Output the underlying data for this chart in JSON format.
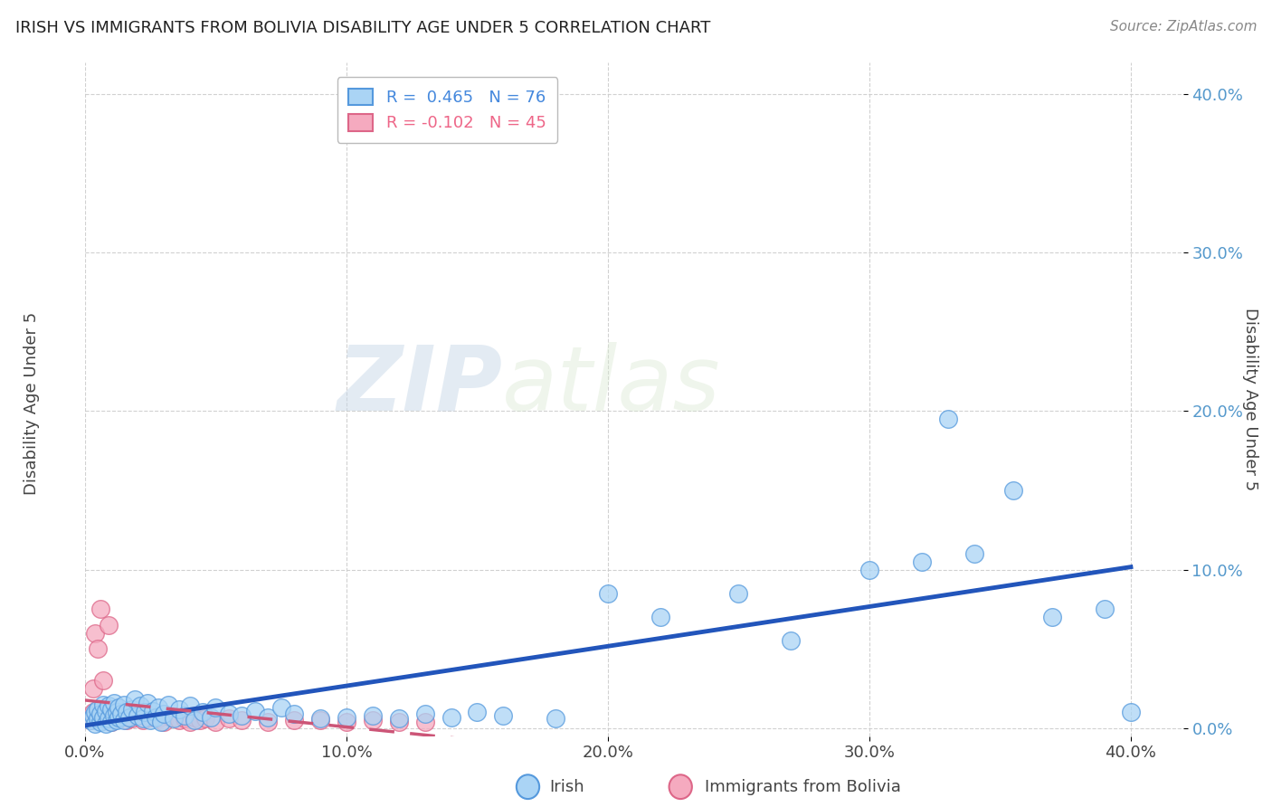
{
  "title": "IRISH VS IMMIGRANTS FROM BOLIVIA DISABILITY AGE UNDER 5 CORRELATION CHART",
  "source": "Source: ZipAtlas.com",
  "ylabel": "Disability Age Under 5",
  "watermark_zip": "ZIP",
  "watermark_atlas": "atlas",
  "xlim": [
    0.0,
    0.42
  ],
  "ylim": [
    -0.005,
    0.42
  ],
  "xticks": [
    0.0,
    0.1,
    0.2,
    0.3,
    0.4
  ],
  "yticks": [
    0.0,
    0.1,
    0.2,
    0.3,
    0.4
  ],
  "xticklabels": [
    "0.0%",
    "10.0%",
    "20.0%",
    "30.0%",
    "40.0%"
  ],
  "yticklabels": [
    "0.0%",
    "10.0%",
    "20.0%",
    "30.0%",
    "40.0%"
  ],
  "irish_R": 0.465,
  "irish_N": 76,
  "bolivia_R": -0.102,
  "bolivia_N": 45,
  "irish_color": "#aad4f5",
  "bolivia_color": "#f5aabf",
  "irish_edge_color": "#5599dd",
  "bolivia_edge_color": "#dd6688",
  "irish_line_color": "#2255bb",
  "bolivia_line_color": "#cc5577",
  "legend_irish_label": "Irish",
  "legend_bolivia_label": "Immigrants from Bolivia",
  "irish_scatter_x": [
    0.002,
    0.003,
    0.004,
    0.004,
    0.005,
    0.005,
    0.006,
    0.006,
    0.007,
    0.007,
    0.008,
    0.008,
    0.009,
    0.009,
    0.01,
    0.01,
    0.011,
    0.011,
    0.012,
    0.012,
    0.013,
    0.013,
    0.014,
    0.015,
    0.015,
    0.016,
    0.017,
    0.018,
    0.019,
    0.02,
    0.021,
    0.022,
    0.023,
    0.024,
    0.025,
    0.026,
    0.027,
    0.028,
    0.029,
    0.03,
    0.032,
    0.034,
    0.036,
    0.038,
    0.04,
    0.042,
    0.045,
    0.048,
    0.05,
    0.055,
    0.06,
    0.065,
    0.07,
    0.075,
    0.08,
    0.09,
    0.1,
    0.11,
    0.12,
    0.13,
    0.14,
    0.15,
    0.16,
    0.18,
    0.2,
    0.22,
    0.25,
    0.27,
    0.3,
    0.32,
    0.33,
    0.34,
    0.355,
    0.37,
    0.39,
    0.4
  ],
  "irish_scatter_y": [
    0.005,
    0.008,
    0.003,
    0.01,
    0.006,
    0.012,
    0.004,
    0.009,
    0.007,
    0.015,
    0.003,
    0.011,
    0.006,
    0.014,
    0.004,
    0.012,
    0.008,
    0.016,
    0.005,
    0.01,
    0.007,
    0.013,
    0.009,
    0.005,
    0.015,
    0.01,
    0.007,
    0.012,
    0.018,
    0.008,
    0.014,
    0.006,
    0.01,
    0.016,
    0.005,
    0.011,
    0.007,
    0.013,
    0.004,
    0.009,
    0.015,
    0.006,
    0.012,
    0.008,
    0.014,
    0.005,
    0.01,
    0.007,
    0.013,
    0.009,
    0.008,
    0.011,
    0.007,
    0.013,
    0.009,
    0.006,
    0.007,
    0.008,
    0.006,
    0.009,
    0.007,
    0.01,
    0.008,
    0.006,
    0.085,
    0.07,
    0.085,
    0.055,
    0.1,
    0.105,
    0.195,
    0.11,
    0.15,
    0.07,
    0.075,
    0.01
  ],
  "bolivia_scatter_x": [
    0.002,
    0.003,
    0.003,
    0.004,
    0.004,
    0.005,
    0.005,
    0.006,
    0.006,
    0.007,
    0.007,
    0.008,
    0.008,
    0.009,
    0.009,
    0.01,
    0.011,
    0.012,
    0.013,
    0.015,
    0.016,
    0.017,
    0.018,
    0.02,
    0.022,
    0.025,
    0.028,
    0.03,
    0.033,
    0.036,
    0.038,
    0.04,
    0.042,
    0.044,
    0.046,
    0.05,
    0.055,
    0.06,
    0.07,
    0.08,
    0.09,
    0.1,
    0.11,
    0.12,
    0.13
  ],
  "bolivia_scatter_y": [
    0.005,
    0.01,
    0.025,
    0.007,
    0.06,
    0.008,
    0.05,
    0.006,
    0.075,
    0.01,
    0.03,
    0.005,
    0.012,
    0.008,
    0.065,
    0.004,
    0.007,
    0.006,
    0.01,
    0.008,
    0.005,
    0.007,
    0.006,
    0.008,
    0.005,
    0.007,
    0.006,
    0.004,
    0.007,
    0.005,
    0.006,
    0.004,
    0.007,
    0.005,
    0.006,
    0.004,
    0.006,
    0.005,
    0.004,
    0.005,
    0.005,
    0.004,
    0.005,
    0.004,
    0.004
  ]
}
